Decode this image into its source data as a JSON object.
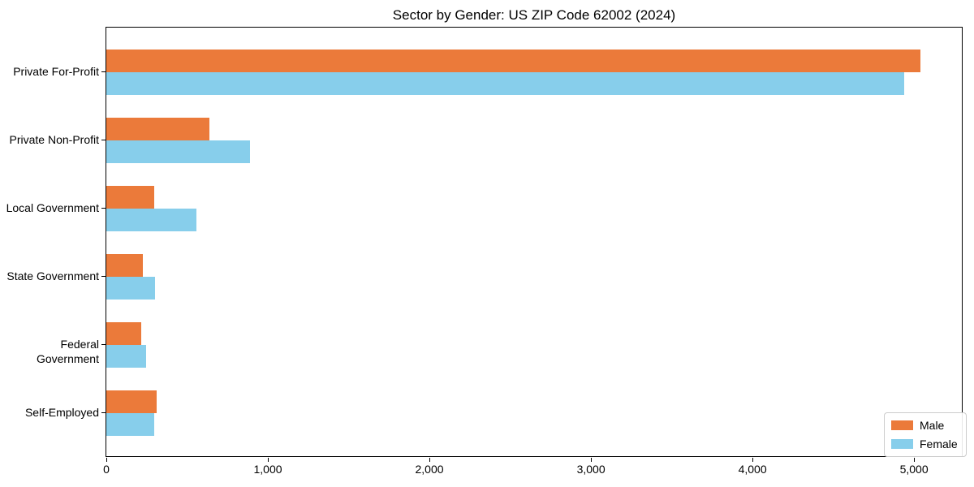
{
  "chart_data": {
    "type": "bar",
    "orientation": "horizontal",
    "title": "Sector by Gender: US ZIP Code 62002 (2024)",
    "categories": [
      "Private For-Profit",
      "Private Non-Profit",
      "Local Government",
      "State Government",
      "Federal Government",
      "Self-Employed"
    ],
    "series": [
      {
        "name": "Male",
        "color": "#EB7A3A",
        "values": [
          5040,
          640,
          295,
          225,
          215,
          310
        ]
      },
      {
        "name": "Female",
        "color": "#87CEEB",
        "values": [
          4940,
          890,
          555,
          300,
          245,
          295
        ]
      }
    ],
    "xlabel": "",
    "ylabel": "",
    "xlim": [
      0,
      5296
    ],
    "xticks": [
      {
        "value": 0,
        "label": "0"
      },
      {
        "value": 1000,
        "label": "1,000"
      },
      {
        "value": 2000,
        "label": "2,000"
      },
      {
        "value": 3000,
        "label": "3,000"
      },
      {
        "value": 4000,
        "label": "4,000"
      },
      {
        "value": 5000,
        "label": "5,000"
      }
    ],
    "grid": false,
    "legend_position": "lower right"
  }
}
